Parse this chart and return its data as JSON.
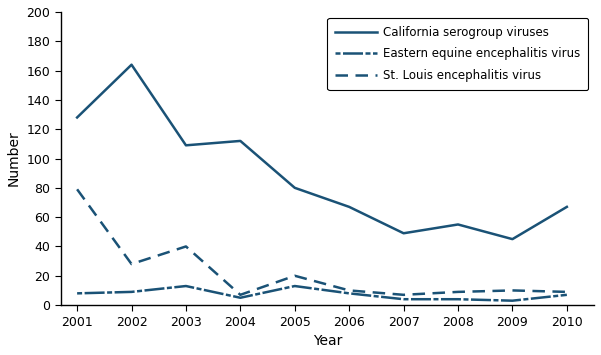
{
  "years": [
    2001,
    2002,
    2003,
    2004,
    2005,
    2006,
    2007,
    2008,
    2009,
    2010
  ],
  "california_serogroup": [
    128,
    164,
    109,
    112,
    80,
    67,
    49,
    55,
    45,
    67
  ],
  "eastern_equine": [
    8,
    9,
    13,
    5,
    13,
    8,
    4,
    4,
    3,
    7
  ],
  "st_louis": [
    79,
    28,
    40,
    7,
    20,
    10,
    7,
    9,
    10,
    9
  ],
  "line_color": "#1a5276",
  "xlabel": "Year",
  "ylabel": "Number",
  "ylim": [
    0,
    200
  ],
  "yticks": [
    0,
    20,
    40,
    60,
    80,
    100,
    120,
    140,
    160,
    180,
    200
  ],
  "legend_labels": [
    "California serogroup viruses",
    "Eastern equine encephalitis virus",
    "St. Louis encephalitis virus"
  ],
  "figsize": [
    6.01,
    3.55
  ],
  "dpi": 100,
  "bg_color": "#ffffff"
}
